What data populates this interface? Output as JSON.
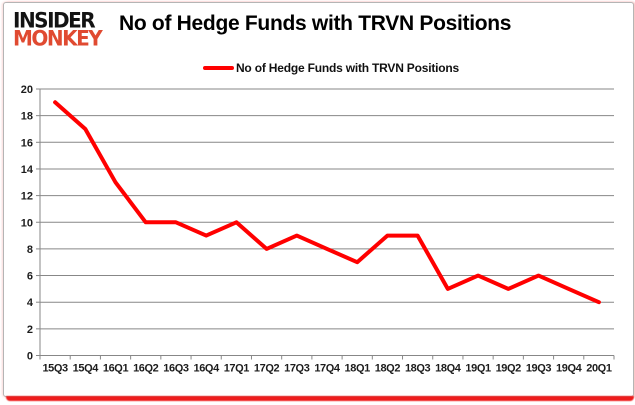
{
  "logo": {
    "line1": "INSIDER",
    "line2": "MONKEY",
    "color_top": "#131313",
    "color_bottom": "#e04a31"
  },
  "header": {
    "title": "No of Hedge Funds with TRVN Positions"
  },
  "legend": {
    "label": "No of Hedge Funds with TRVN Positions",
    "marker_color": "#ff0000"
  },
  "chart_data": {
    "type": "line",
    "title": "No of Hedge Funds with TRVN Positions",
    "series_name": "No of Hedge Funds with TRVN Positions",
    "categories": [
      "15Q3",
      "15Q4",
      "16Q1",
      "16Q2",
      "16Q3",
      "16Q4",
      "17Q1",
      "17Q2",
      "17Q3",
      "17Q4",
      "18Q1",
      "18Q2",
      "18Q3",
      "18Q4",
      "19Q1",
      "19Q2",
      "19Q3",
      "19Q4",
      "20Q1"
    ],
    "values": [
      19,
      17,
      13,
      10,
      10,
      9,
      10,
      8,
      9,
      8,
      7,
      9,
      9,
      5,
      6,
      5,
      6,
      5,
      4
    ],
    "xlabel": "",
    "ylabel": "",
    "ylim": [
      0,
      20
    ],
    "ytick_step": 2,
    "grid": true,
    "legend_position": "top-center",
    "line_color": "#ff0000",
    "gridline_color": "#878787"
  }
}
